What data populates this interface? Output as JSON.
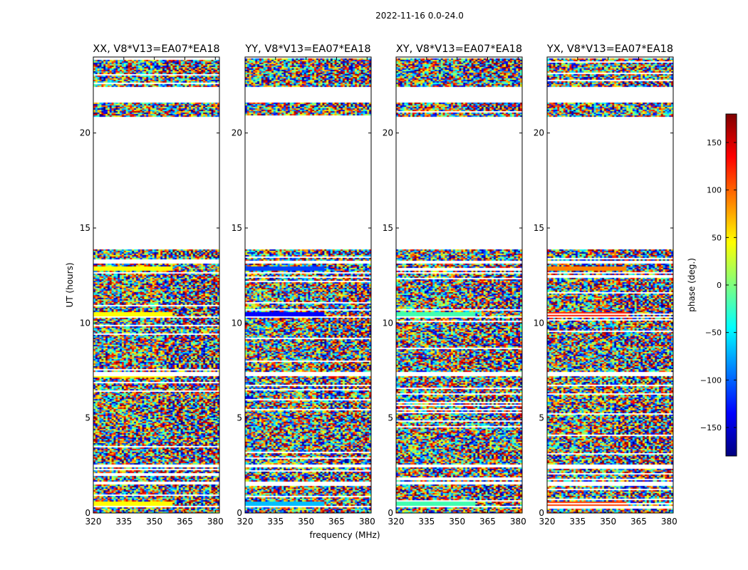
{
  "chart_data": {
    "type": "heatmap",
    "suptitle": "2022-11-16 0.0-24.0",
    "xlabel": "frequency (MHz)",
    "ylabel": "UT (hours)",
    "xlim": [
      320,
      382
    ],
    "ylim": [
      0,
      24
    ],
    "xticks": [
      "320",
      "335",
      "350",
      "365",
      "380"
    ],
    "xtick_values": [
      320,
      335,
      350,
      365,
      380
    ],
    "yticks": [
      "0",
      "5",
      "10",
      "15",
      "20"
    ],
    "ytick_values": [
      0,
      5,
      10,
      15,
      20
    ],
    "colorbar": {
      "label": "phase (deg.)",
      "range": [
        -180,
        180
      ],
      "ticks": [
        "150",
        "100",
        "50",
        "0",
        "−50",
        "−100",
        "−150"
      ],
      "tick_values": [
        150,
        100,
        50,
        0,
        -50,
        -100,
        -150
      ],
      "colormap": "jet",
      "colors": [
        "#00007f",
        "#0000ff",
        "#007fff",
        "#00ffff",
        "#7fff7f",
        "#ffff00",
        "#ff7f00",
        "#ff0000",
        "#7f0000"
      ]
    },
    "data_hour_ranges": [
      [
        0.0,
        13.9
      ],
      [
        20.9,
        24.0
      ]
    ],
    "blank_hour_ranges": [
      [
        0.3,
        0.45
      ],
      [
        1.55,
        1.65
      ],
      [
        2.45,
        2.6
      ],
      [
        7.25,
        7.45
      ],
      [
        10.3,
        10.4
      ],
      [
        12.65,
        12.75
      ],
      [
        13.15,
        13.3
      ],
      [
        21.65,
        22.5
      ]
    ],
    "panels": [
      {
        "title": "XX, V8*V13=EA07*EA18",
        "banded_rows": [
          {
            "hour": 0.5,
            "color": "#ffff00"
          },
          {
            "hour": 7.3,
            "color": "#ffff00"
          },
          {
            "hour": 10.5,
            "color": "#ffff00"
          },
          {
            "hour": 12.9,
            "color": "#ffff00"
          }
        ]
      },
      {
        "title": "YY, V8*V13=EA07*EA18",
        "banded_rows": [
          {
            "hour": 0.5,
            "color": "#00bfff"
          },
          {
            "hour": 10.5,
            "color": "#0000ff"
          },
          {
            "hour": 12.9,
            "color": "#0040ff"
          }
        ]
      },
      {
        "title": "XY, V8*V13=EA07*EA18",
        "banded_rows": [
          {
            "hour": 0.5,
            "color": "#40ffb0"
          },
          {
            "hour": 10.5,
            "color": "#40ffb0"
          }
        ]
      },
      {
        "title": "YX, V8*V13=EA07*EA18",
        "banded_rows": [
          {
            "hour": 0.5,
            "color": "#ff4000"
          },
          {
            "hour": 10.5,
            "color": "#ff2000"
          },
          {
            "hour": 12.9,
            "color": "#ff8000"
          }
        ]
      }
    ]
  }
}
